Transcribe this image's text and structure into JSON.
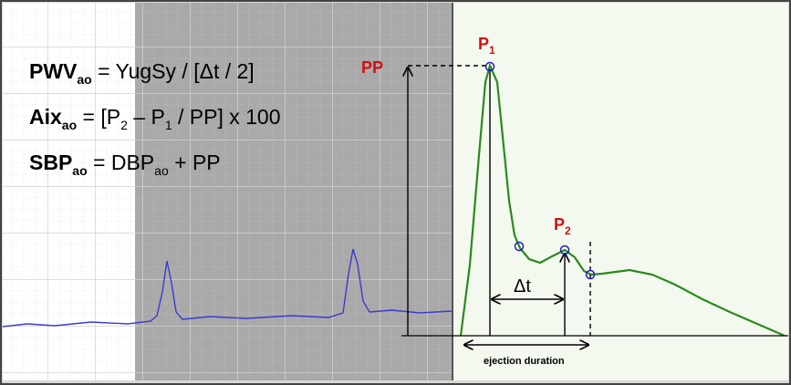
{
  "formulas": [
    [
      "PWV",
      "ao",
      " = YugSy / [Δt / 2]"
    ],
    [
      "Aix",
      "ao",
      " = [P",
      "2",
      " – P",
      "1",
      " / PP] x 100"
    ],
    [
      "SBP",
      "ao",
      " = DBP",
      "ao",
      " + PP"
    ]
  ],
  "labels": {
    "pp": "PP",
    "p1": [
      "P",
      "1"
    ],
    "p2": [
      "P",
      "2"
    ],
    "delta_t": "Δt",
    "ejection_duration": "ejection duration"
  }
}
